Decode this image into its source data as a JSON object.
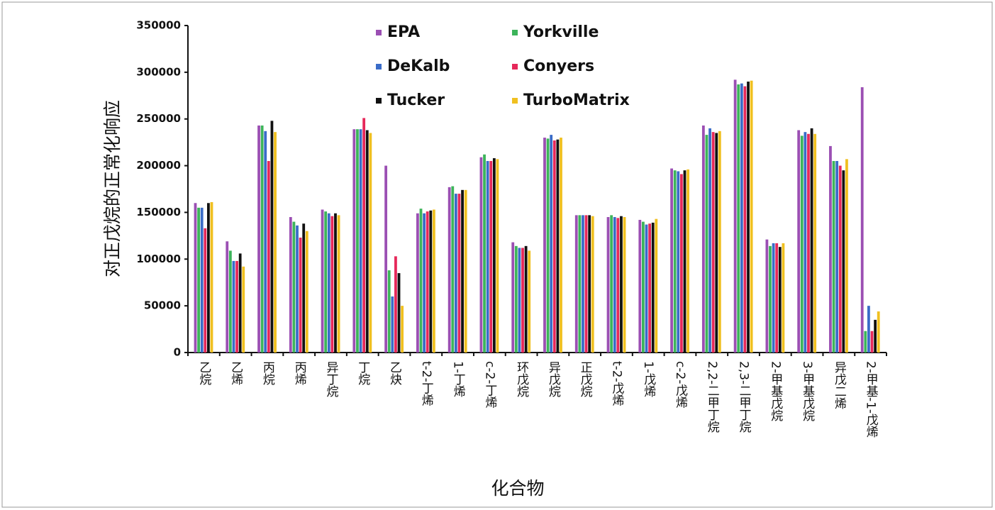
{
  "chart_data": {
    "type": "bar",
    "x_label": "化合物",
    "y_label": "对正戊烷的正常化响应",
    "categories": [
      "乙烷",
      "乙烯",
      "丙烷",
      "丙烯",
      "异丁烷",
      "丁烷",
      "乙炔",
      "t-2-丁烯",
      "1-丁烯",
      "c-2-丁烯",
      "环戊烷",
      "异戊烷",
      "正戊烷",
      "t-2-戊烯",
      "1-戊烯",
      "c-2-戊烯",
      "2,2-二甲丁烷",
      "2,3-二甲丁烷",
      "2-甲基戊烷",
      "3-甲基戊烷",
      "异戊二烯",
      "2-甲基-1-戊烯"
    ],
    "series": [
      {
        "name": "EPA",
        "color": "#9b4fb3",
        "values": [
          160000,
          119000,
          243000,
          145000,
          153000,
          239000,
          200000,
          149000,
          177000,
          209000,
          118000,
          230000,
          147000,
          145000,
          142000,
          197000,
          243000,
          292000,
          121000,
          238000,
          221000,
          284000
        ]
      },
      {
        "name": "Yorkville",
        "color": "#3cb45a",
        "values": [
          155000,
          109000,
          243000,
          140000,
          151000,
          239000,
          88000,
          154000,
          178000,
          212000,
          114000,
          229000,
          147000,
          147000,
          140000,
          195000,
          233000,
          287000,
          114000,
          232000,
          205000,
          23000
        ]
      },
      {
        "name": "DeKalb",
        "color": "#3a6cc8",
        "values": [
          155000,
          98000,
          237000,
          136000,
          149000,
          239000,
          60000,
          149000,
          170000,
          205000,
          112000,
          233000,
          147000,
          145000,
          137000,
          194000,
          240000,
          288000,
          117000,
          236000,
          205000,
          50000
        ]
      },
      {
        "name": "Conyers",
        "color": "#e6285a",
        "values": [
          133000,
          98000,
          205000,
          123000,
          146000,
          251000,
          103000,
          151000,
          170000,
          205000,
          112000,
          227000,
          147000,
          144000,
          138000,
          191000,
          236000,
          285000,
          117000,
          234000,
          200000,
          23000
        ]
      },
      {
        "name": "Tucker",
        "color": "#111111",
        "values": [
          160000,
          106000,
          248000,
          138000,
          149000,
          238000,
          85000,
          152000,
          174000,
          208000,
          114000,
          228000,
          147000,
          146000,
          139000,
          195000,
          235000,
          290000,
          113000,
          240000,
          195000,
          35000
        ]
      },
      {
        "name": "TurboMatrix",
        "color": "#f0c020",
        "values": [
          161000,
          92000,
          236000,
          130000,
          147000,
          235000,
          50000,
          153000,
          174000,
          207000,
          109000,
          230000,
          146000,
          145000,
          143000,
          196000,
          237000,
          291000,
          117000,
          234000,
          207000,
          44000
        ]
      }
    ],
    "ylim": [
      0,
      350000
    ],
    "yticks": [
      0,
      50000,
      100000,
      150000,
      200000,
      250000,
      300000,
      350000
    ]
  }
}
